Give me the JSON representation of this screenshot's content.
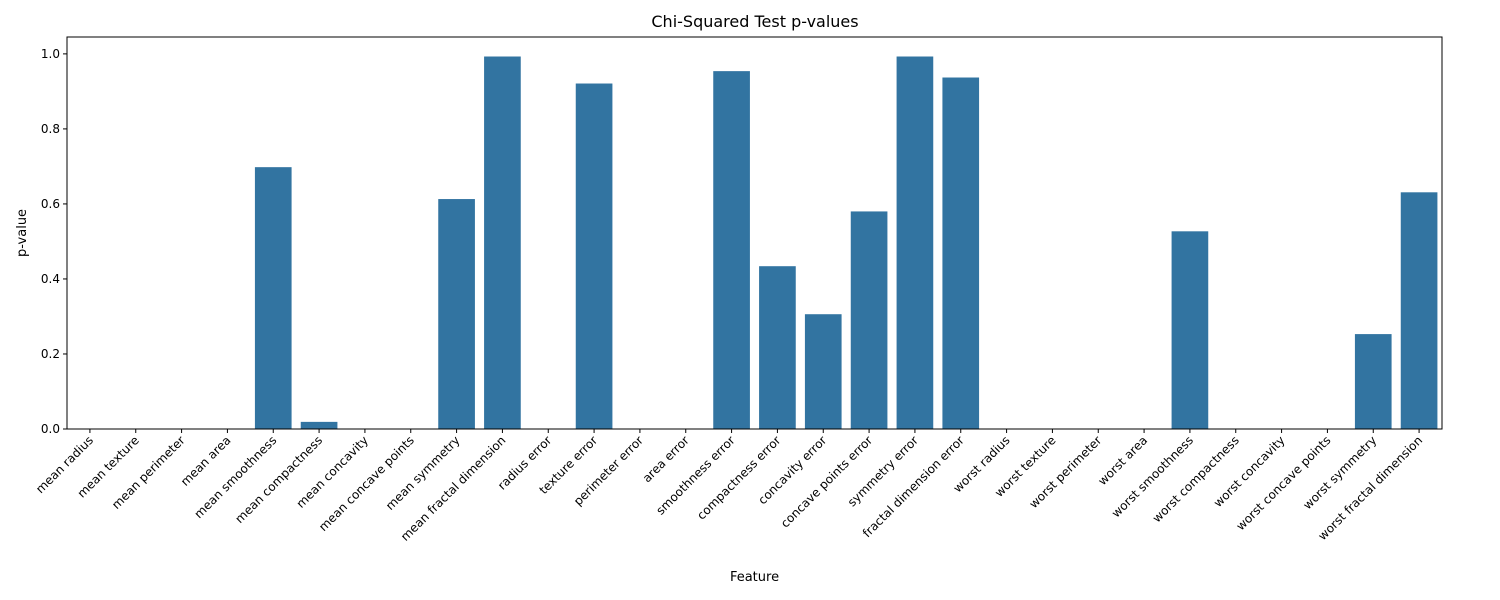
{
  "chart_data": {
    "type": "bar",
    "title": "Chi-Squared Test p-values",
    "xlabel": "Feature",
    "ylabel": "p-value",
    "ylim": [
      0,
      1.045
    ],
    "yticks": [
      0.0,
      0.2,
      0.4,
      0.6,
      0.8,
      1.0
    ],
    "ytick_labels": [
      "0.0",
      "0.2",
      "0.4",
      "0.6",
      "0.8",
      "1.0"
    ],
    "grid": false,
    "bar_color": "#3274a1",
    "categories": [
      "mean radius",
      "mean texture",
      "mean perimeter",
      "mean area",
      "mean smoothness",
      "mean compactness",
      "mean concavity",
      "mean concave points",
      "mean symmetry",
      "mean fractal dimension",
      "radius error",
      "texture error",
      "perimeter error",
      "area error",
      "smoothness error",
      "compactness error",
      "concavity error",
      "concave points error",
      "symmetry error",
      "fractal dimension error",
      "worst radius",
      "worst texture",
      "worst perimeter",
      "worst area",
      "worst smoothness",
      "worst compactness",
      "worst concavity",
      "worst concave points",
      "worst symmetry",
      "worst fractal dimension"
    ],
    "values": [
      0.0,
      0.0,
      0.0,
      0.0,
      0.698,
      0.019,
      0.0,
      0.0,
      0.613,
      0.993,
      0.0,
      0.921,
      0.0,
      0.0,
      0.954,
      0.434,
      0.306,
      0.58,
      0.993,
      0.937,
      0.0,
      0.0,
      0.0,
      0.0,
      0.527,
      0.0,
      0.0,
      0.0,
      0.253,
      0.631
    ]
  }
}
